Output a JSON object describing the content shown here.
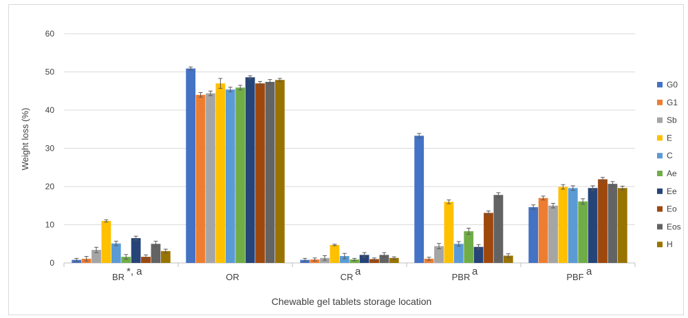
{
  "chart_data": {
    "type": "bar",
    "title": "",
    "xlabel": "Chewable gel tablets storage location",
    "ylabel": "Weight loss (%)",
    "ylim": [
      0,
      60
    ],
    "yticks": [
      0,
      10,
      20,
      30,
      40,
      50,
      60
    ],
    "grid": true,
    "legend_position": "right",
    "categories": [
      "BR",
      "OR",
      "CR",
      "PBR",
      "PBF"
    ],
    "category_annotations": [
      "*, a",
      "",
      "a",
      "a",
      "a"
    ],
    "series": [
      {
        "name": "G0",
        "color": "#4472C4",
        "values": [
          0.8,
          50.9,
          0.8,
          33.3,
          14.6
        ],
        "errors": [
          0.4,
          0.4,
          0.4,
          0.6,
          0.6
        ]
      },
      {
        "name": "G1",
        "color": "#ED7D31",
        "values": [
          1.1,
          44.0,
          0.9,
          1.1,
          17.0
        ],
        "errors": [
          0.6,
          0.6,
          0.4,
          0.4,
          0.5
        ]
      },
      {
        "name": "Sb",
        "color": "#A5A5A5",
        "values": [
          3.4,
          44.4,
          1.3,
          4.4,
          15.0
        ],
        "errors": [
          0.7,
          0.6,
          0.6,
          0.7,
          0.6
        ]
      },
      {
        "name": "E",
        "color": "#FFC000",
        "values": [
          11.0,
          47.0,
          4.7,
          16.0,
          19.9
        ],
        "errors": [
          0.3,
          1.3,
          0.2,
          0.5,
          0.6
        ]
      },
      {
        "name": "C",
        "color": "#5B9BD5",
        "values": [
          5.1,
          45.4,
          1.8,
          5.0,
          19.6
        ],
        "errors": [
          0.6,
          0.6,
          0.7,
          0.6,
          0.6
        ]
      },
      {
        "name": "Ae",
        "color": "#70AD47",
        "values": [
          1.6,
          45.9,
          0.9,
          8.3,
          16.1
        ],
        "errors": [
          0.6,
          0.6,
          0.3,
          0.8,
          0.7
        ]
      },
      {
        "name": "Ee",
        "color": "#264478",
        "values": [
          6.5,
          48.6,
          2.1,
          4.2,
          19.6
        ],
        "errors": [
          0.5,
          0.4,
          0.6,
          0.6,
          0.6
        ]
      },
      {
        "name": "Eo",
        "color": "#9E480E",
        "values": [
          1.6,
          47.0,
          1.0,
          13.1,
          21.9
        ],
        "errors": [
          0.5,
          0.5,
          0.3,
          0.5,
          0.5
        ]
      },
      {
        "name": "Eos",
        "color": "#636363",
        "values": [
          5.0,
          47.4,
          2.1,
          17.8,
          20.7
        ],
        "errors": [
          0.7,
          0.6,
          0.6,
          0.6,
          0.6
        ]
      },
      {
        "name": "H",
        "color": "#997300",
        "values": [
          3.1,
          47.9,
          1.3,
          1.9,
          19.6
        ],
        "errors": [
          0.5,
          0.4,
          0.3,
          0.5,
          0.5
        ]
      }
    ]
  }
}
